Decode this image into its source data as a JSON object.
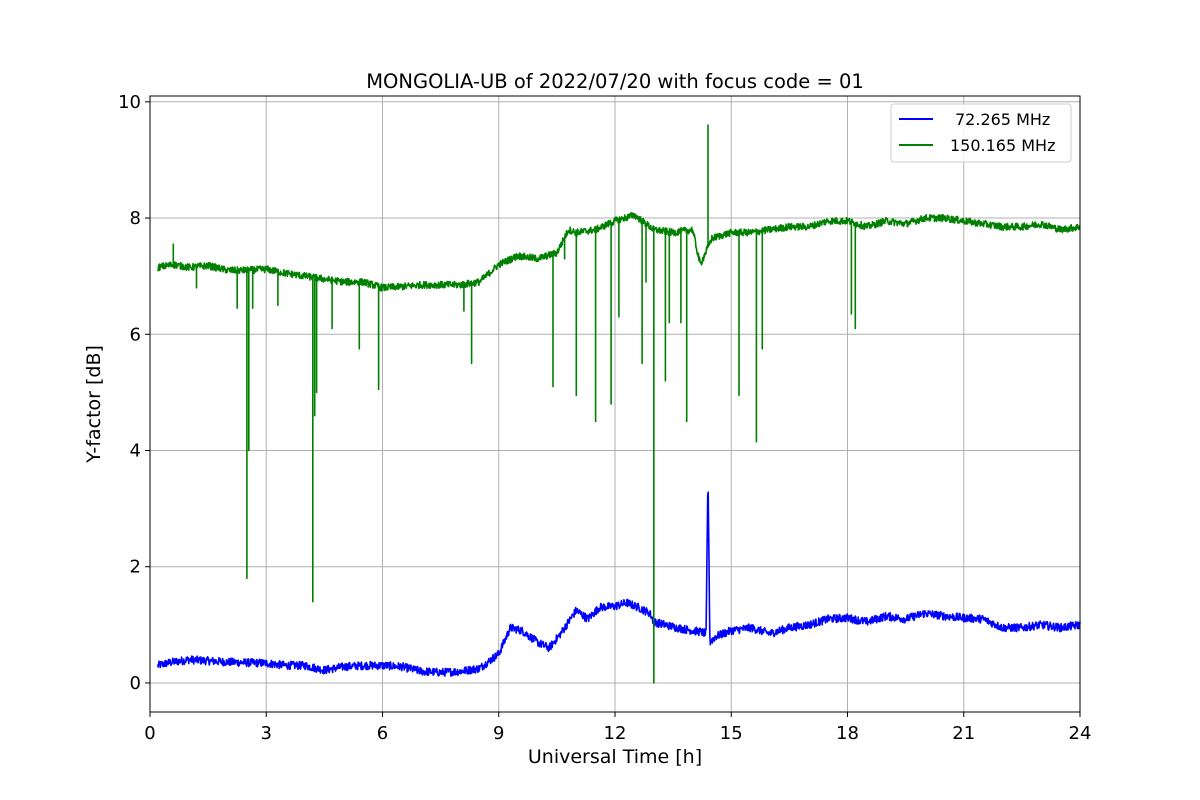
{
  "chart_data": {
    "type": "line",
    "title": "MONGOLIA-UB of 2022/07/20 with focus code = 01",
    "xlabel": "Universal Time [h]",
    "ylabel": "Y-factor [dB]",
    "xlim": [
      0,
      24
    ],
    "ylim": [
      -0.5,
      10.1
    ],
    "xticks": [
      0,
      3,
      6,
      9,
      12,
      15,
      18,
      21,
      24
    ],
    "yticks": [
      0,
      2,
      4,
      6,
      8,
      10
    ],
    "grid": true,
    "legend_position": "top-right",
    "series": [
      {
        "name": "72.265 MHz",
        "color": "#0000ff",
        "x": [
          0.2,
          0.5,
          1.0,
          1.5,
          2.0,
          2.5,
          3.0,
          3.5,
          4.0,
          4.5,
          5.0,
          5.5,
          6.0,
          6.5,
          7.0,
          7.5,
          8.0,
          8.5,
          9.0,
          9.3,
          9.6,
          10.0,
          10.3,
          10.6,
          11.0,
          11.3,
          11.6,
          12.0,
          12.3,
          12.6,
          12.9,
          13.0,
          13.3,
          13.6,
          14.0,
          14.2,
          14.35,
          14.4,
          14.45,
          14.6,
          15.0,
          15.5,
          16.0,
          16.5,
          17.0,
          17.5,
          18.0,
          18.5,
          19.0,
          19.5,
          20.0,
          20.5,
          21.0,
          21.5,
          22.0,
          22.5,
          23.0,
          23.5,
          24.0
        ],
        "y": [
          0.3,
          0.35,
          0.4,
          0.38,
          0.36,
          0.35,
          0.34,
          0.3,
          0.3,
          0.22,
          0.28,
          0.3,
          0.3,
          0.28,
          0.2,
          0.18,
          0.2,
          0.25,
          0.5,
          0.95,
          0.9,
          0.7,
          0.6,
          0.85,
          1.25,
          1.1,
          1.3,
          1.32,
          1.38,
          1.3,
          1.2,
          1.05,
          1.0,
          0.95,
          0.9,
          0.88,
          0.85,
          3.55,
          0.7,
          0.8,
          0.9,
          0.95,
          0.85,
          0.95,
          1.0,
          1.1,
          1.12,
          1.05,
          1.15,
          1.1,
          1.2,
          1.15,
          1.12,
          1.1,
          0.95,
          0.95,
          1.0,
          0.95,
          1.0
        ]
      },
      {
        "name": "150.165 MHz",
        "color": "#008000",
        "x": [
          0.2,
          0.6,
          1.0,
          1.5,
          2.0,
          2.5,
          3.0,
          3.5,
          4.0,
          4.5,
          5.0,
          5.5,
          6.0,
          6.5,
          7.0,
          7.5,
          8.0,
          8.5,
          9.0,
          9.5,
          10.0,
          10.5,
          10.8,
          11.0,
          11.5,
          12.0,
          12.5,
          13.0,
          13.5,
          14.0,
          14.2,
          14.4,
          14.5,
          15.0,
          15.5,
          16.0,
          16.5,
          17.0,
          17.5,
          18.0,
          18.5,
          19.0,
          19.5,
          20.0,
          20.5,
          21.0,
          21.5,
          22.0,
          22.5,
          23.0,
          23.5,
          24.0
        ],
        "y": [
          7.15,
          7.2,
          7.15,
          7.18,
          7.1,
          7.1,
          7.12,
          7.05,
          7.0,
          6.95,
          6.9,
          6.9,
          6.8,
          6.82,
          6.85,
          6.85,
          6.85,
          6.9,
          7.2,
          7.35,
          7.3,
          7.4,
          7.8,
          7.75,
          7.8,
          7.95,
          8.05,
          7.8,
          7.75,
          7.8,
          7.2,
          7.5,
          7.65,
          7.75,
          7.75,
          7.8,
          7.85,
          7.85,
          7.95,
          7.95,
          7.85,
          7.95,
          7.9,
          8.0,
          8.0,
          7.95,
          7.9,
          7.85,
          7.85,
          7.9,
          7.8,
          7.85
        ]
      }
    ],
    "dips_150": [
      [
        0.6,
        7.55
      ],
      [
        1.2,
        6.8
      ],
      [
        2.25,
        6.45
      ],
      [
        2.5,
        1.8
      ],
      [
        2.55,
        4.0
      ],
      [
        2.65,
        6.45
      ],
      [
        3.3,
        6.5
      ],
      [
        4.2,
        1.4
      ],
      [
        4.25,
        4.6
      ],
      [
        4.3,
        5.0
      ],
      [
        4.7,
        6.1
      ],
      [
        5.4,
        5.75
      ],
      [
        5.9,
        5.05
      ],
      [
        8.1,
        6.4
      ],
      [
        8.3,
        5.5
      ],
      [
        10.4,
        5.1
      ],
      [
        10.7,
        7.3
      ],
      [
        11.0,
        4.95
      ],
      [
        11.5,
        4.5
      ],
      [
        11.9,
        4.8
      ],
      [
        12.1,
        6.3
      ],
      [
        12.7,
        5.5
      ],
      [
        12.8,
        6.9
      ],
      [
        13.0,
        0.0
      ],
      [
        13.3,
        5.2
      ],
      [
        13.4,
        6.2
      ],
      [
        13.7,
        6.2
      ],
      [
        13.85,
        4.5
      ],
      [
        14.4,
        9.6
      ],
      [
        15.2,
        4.95
      ],
      [
        15.65,
        4.15
      ],
      [
        15.8,
        5.75
      ],
      [
        18.1,
        6.35
      ],
      [
        18.2,
        6.1
      ]
    ],
    "noise_72": 0.07,
    "noise_150": 0.06
  }
}
